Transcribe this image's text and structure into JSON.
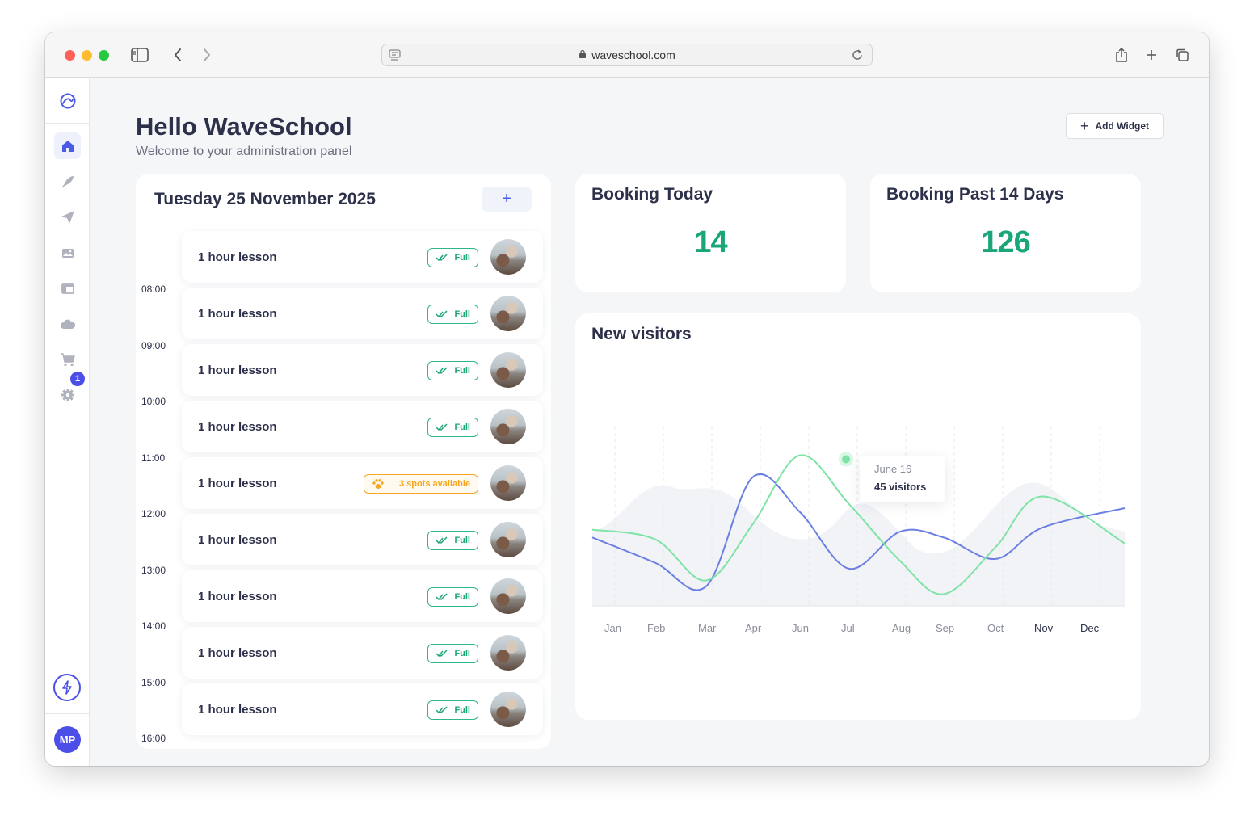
{
  "browser": {
    "url": "waveschool.com"
  },
  "sidebar": {
    "items": [
      {
        "name": "home",
        "icon": "home-icon",
        "active": true
      },
      {
        "name": "surf",
        "icon": "pen-icon",
        "active": false
      },
      {
        "name": "send",
        "icon": "send-icon",
        "active": false
      },
      {
        "name": "gallery",
        "icon": "image-icon",
        "active": false
      },
      {
        "name": "layout",
        "icon": "layout-icon",
        "active": false
      },
      {
        "name": "cloud",
        "icon": "cloud-icon",
        "active": false
      },
      {
        "name": "shop",
        "icon": "cart-icon",
        "active": false
      },
      {
        "name": "settings",
        "icon": "gear-icon",
        "active": false
      }
    ],
    "settings_badge": "1",
    "user_initials": "MP"
  },
  "header": {
    "title": "Hello WaveSchool",
    "subtitle": "Welcome to your administration panel",
    "add_widget_label": "Add Widget"
  },
  "schedule": {
    "date_title": "Tuesday 25 November 2025",
    "add_label": "+",
    "times": [
      "08:00",
      "09:00",
      "10:00",
      "11:00",
      "12:00",
      "13:00",
      "14:00",
      "15:00",
      "16:00"
    ],
    "lessons": [
      {
        "label": "1 hour lesson",
        "status": "Full",
        "type": "full"
      },
      {
        "label": "1 hour lesson",
        "status": "Full",
        "type": "full"
      },
      {
        "label": "1 hour lesson",
        "status": "Full",
        "type": "full"
      },
      {
        "label": "1 hour lesson",
        "status": "Full",
        "type": "full"
      },
      {
        "label": "1 hour lesson",
        "status": "3 spots available",
        "type": "spots"
      },
      {
        "label": "1 hour lesson",
        "status": "Full",
        "type": "full"
      },
      {
        "label": "1 hour lesson",
        "status": "Full",
        "type": "full"
      },
      {
        "label": "1 hour lesson",
        "status": "Full",
        "type": "full"
      },
      {
        "label": "1 hour lesson",
        "status": "Full",
        "type": "full"
      }
    ]
  },
  "stats": {
    "today": {
      "title": "Booking Today",
      "value": "14"
    },
    "past": {
      "title": "Booking Past 14 Days",
      "value": "126"
    }
  },
  "chart_data": {
    "type": "line",
    "title": "New visitors",
    "categories": [
      "Jan",
      "Feb",
      "Mar",
      "Apr",
      "Jun",
      "Jul",
      "Aug",
      "Sep",
      "Oct",
      "Nov",
      "Dec"
    ],
    "highlighted_categories": [
      "Nov",
      "Dec"
    ],
    "series": [
      {
        "color": "#6b7fe3",
        "values": [
          35,
          22,
          10,
          66,
          48,
          19,
          38,
          35,
          24,
          40,
          50
        ]
      },
      {
        "color": "#7fe3a5",
        "values": [
          39,
          34,
          13,
          42,
          77,
          52,
          23,
          6,
          30,
          56,
          32
        ]
      }
    ],
    "tooltip": {
      "date": "June 16",
      "value": "45 visitors"
    },
    "ylim": [
      0,
      100
    ],
    "grid": "vertical-dashed",
    "legend": "none"
  }
}
